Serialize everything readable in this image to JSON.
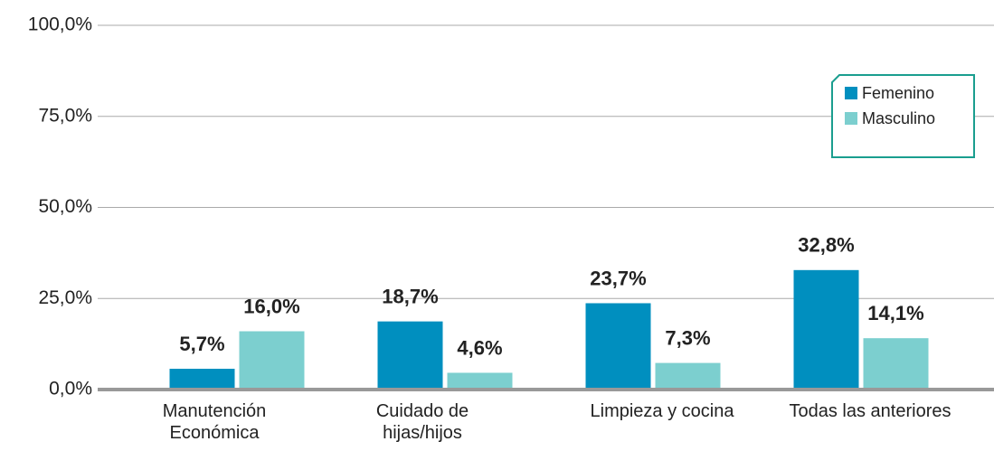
{
  "chart_data": {
    "type": "bar",
    "categories": [
      "Manutención\nEconómica",
      "Cuidado de\nhijas/hijos",
      "Limpieza y cocina",
      "Todas las anteriores"
    ],
    "series": [
      {
        "name": "Femenino",
        "color": "#008fbf",
        "values": [
          5.7,
          18.7,
          23.7,
          32.8
        ],
        "value_labels": [
          "5,7%",
          "18,7%",
          "23,7%",
          "32,8%"
        ]
      },
      {
        "name": "Masculino",
        "color": "#7ccfcf",
        "values": [
          16.0,
          4.6,
          7.3,
          14.1
        ],
        "value_labels": [
          "16,0%",
          "4,6%",
          "7,3%",
          "14,1%"
        ]
      }
    ],
    "ylim": [
      0,
      100
    ],
    "yticks": [
      {
        "value": 0,
        "label": "0,0%"
      },
      {
        "value": 25,
        "label": "25,0%"
      },
      {
        "value": 50,
        "label": "50,0%"
      },
      {
        "value": 75,
        "label": "75,0%"
      },
      {
        "value": 100,
        "label": "100,0%"
      }
    ],
    "grid": true,
    "legend": "top-right"
  }
}
